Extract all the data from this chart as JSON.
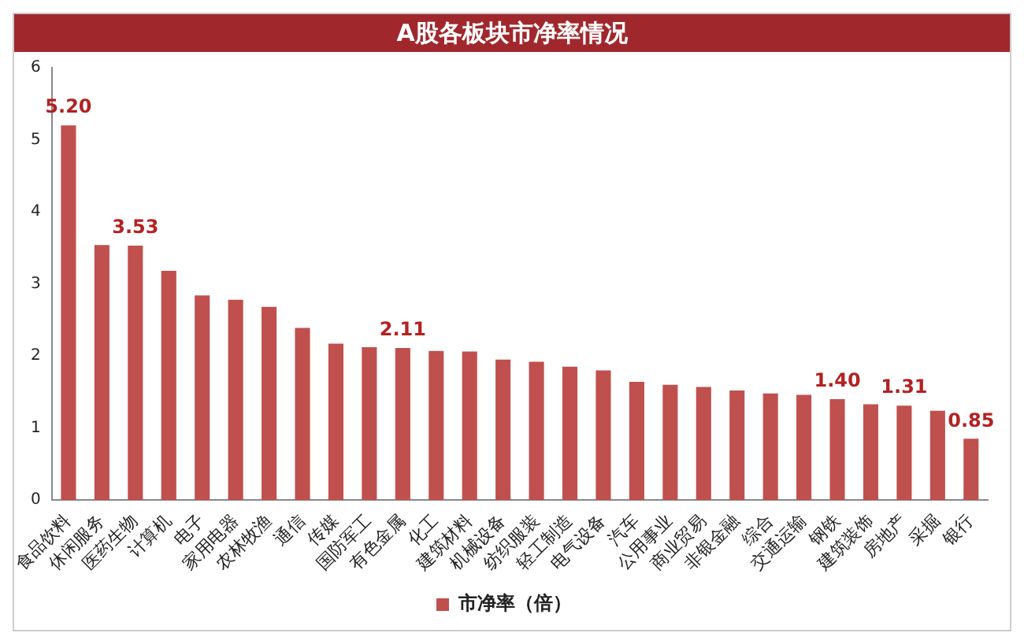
{
  "chart_data": {
    "type": "bar",
    "title": "A股各板块市净率情况",
    "categories": [
      "食品饮料",
      "休闲服务",
      "医药生物",
      "计算机",
      "电子",
      "家用电器",
      "农林牧渔",
      "通信",
      "传媒",
      "国防军工",
      "有色金属",
      "化工",
      "建筑材料",
      "机械设备",
      "纺织服装",
      "轻工制造",
      "电气设备",
      "汽车",
      "公用事业",
      "商业贸易",
      "非银金融",
      "综合",
      "交通运输",
      "钢铁",
      "建筑装饰",
      "房地产",
      "采掘",
      "银行"
    ],
    "series": [
      {
        "name": "市净率（倍）",
        "color": "#c0504d",
        "values": [
          5.2,
          3.54,
          3.53,
          3.18,
          2.84,
          2.78,
          2.68,
          2.39,
          2.17,
          2.12,
          2.11,
          2.07,
          2.06,
          1.95,
          1.92,
          1.85,
          1.8,
          1.64,
          1.6,
          1.57,
          1.52,
          1.48,
          1.46,
          1.4,
          1.33,
          1.31,
          1.24,
          0.85
        ],
        "value_labels": [
          "5.20",
          null,
          "3.53",
          null,
          null,
          null,
          null,
          null,
          null,
          null,
          "2.11",
          null,
          null,
          null,
          null,
          null,
          null,
          null,
          null,
          null,
          null,
          null,
          null,
          "1.40",
          null,
          "1.31",
          null,
          "0.85"
        ]
      }
    ],
    "ylim": [
      0,
      6
    ],
    "yticks": [
      0,
      1,
      2,
      3,
      4,
      5,
      6
    ],
    "grid": false,
    "legend": "bottom"
  }
}
